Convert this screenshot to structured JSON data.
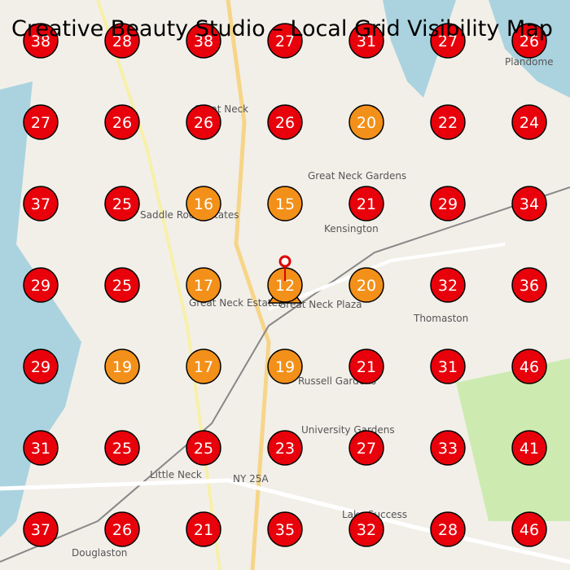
{
  "title": "Creative Beauty Studio – Local Grid Visibility Map",
  "grid": {
    "rows": [
      [
        38,
        28,
        38,
        27,
        31,
        27,
        26
      ],
      [
        27,
        26,
        26,
        26,
        20,
        22,
        24
      ],
      [
        37,
        25,
        16,
        15,
        21,
        29,
        34
      ],
      [
        29,
        25,
        17,
        12,
        20,
        32,
        36
      ],
      [
        29,
        19,
        17,
        19,
        21,
        31,
        46
      ],
      [
        31,
        25,
        25,
        23,
        27,
        33,
        41
      ],
      [
        37,
        26,
        21,
        35,
        32,
        28,
        46
      ]
    ],
    "colors": [
      [
        "#e8000b",
        "#e8000b",
        "#e8000b",
        "#e8000b",
        "#e8000b",
        "#e8000b",
        "#e8000b"
      ],
      [
        "#e8000b",
        "#e8000b",
        "#e8000b",
        "#e8000b",
        "#f39019",
        "#e8000b",
        "#e8000b"
      ],
      [
        "#e8000b",
        "#e8000b",
        "#f39019",
        "#f39019",
        "#e8000b",
        "#e8000b",
        "#e8000b"
      ],
      [
        "#e8000b",
        "#e8000b",
        "#f39019",
        "#f39019",
        "#f39019",
        "#e8000b",
        "#e8000b"
      ],
      [
        "#e8000b",
        "#f39019",
        "#f39019",
        "#f39019",
        "#e8000b",
        "#e8000b",
        "#e8000b"
      ],
      [
        "#e8000b",
        "#e8000b",
        "#e8000b",
        "#e8000b",
        "#e8000b",
        "#e8000b",
        "#e8000b"
      ],
      [
        "#e8000b",
        "#e8000b",
        "#e8000b",
        "#e8000b",
        "#e8000b",
        "#e8000b",
        "#e8000b"
      ]
    ]
  },
  "map_labels": [
    "Great Neck",
    "Great Neck Gardens",
    "Kensington",
    "Great Neck Plaza",
    "Thomaston",
    "Russell Gardens",
    "University Gardens",
    "Saddle Rock Estates",
    "Great Neck Estates",
    "Little Neck",
    "Douglaston",
    "Lake Success",
    "Plandome",
    "NY 25A"
  ]
}
